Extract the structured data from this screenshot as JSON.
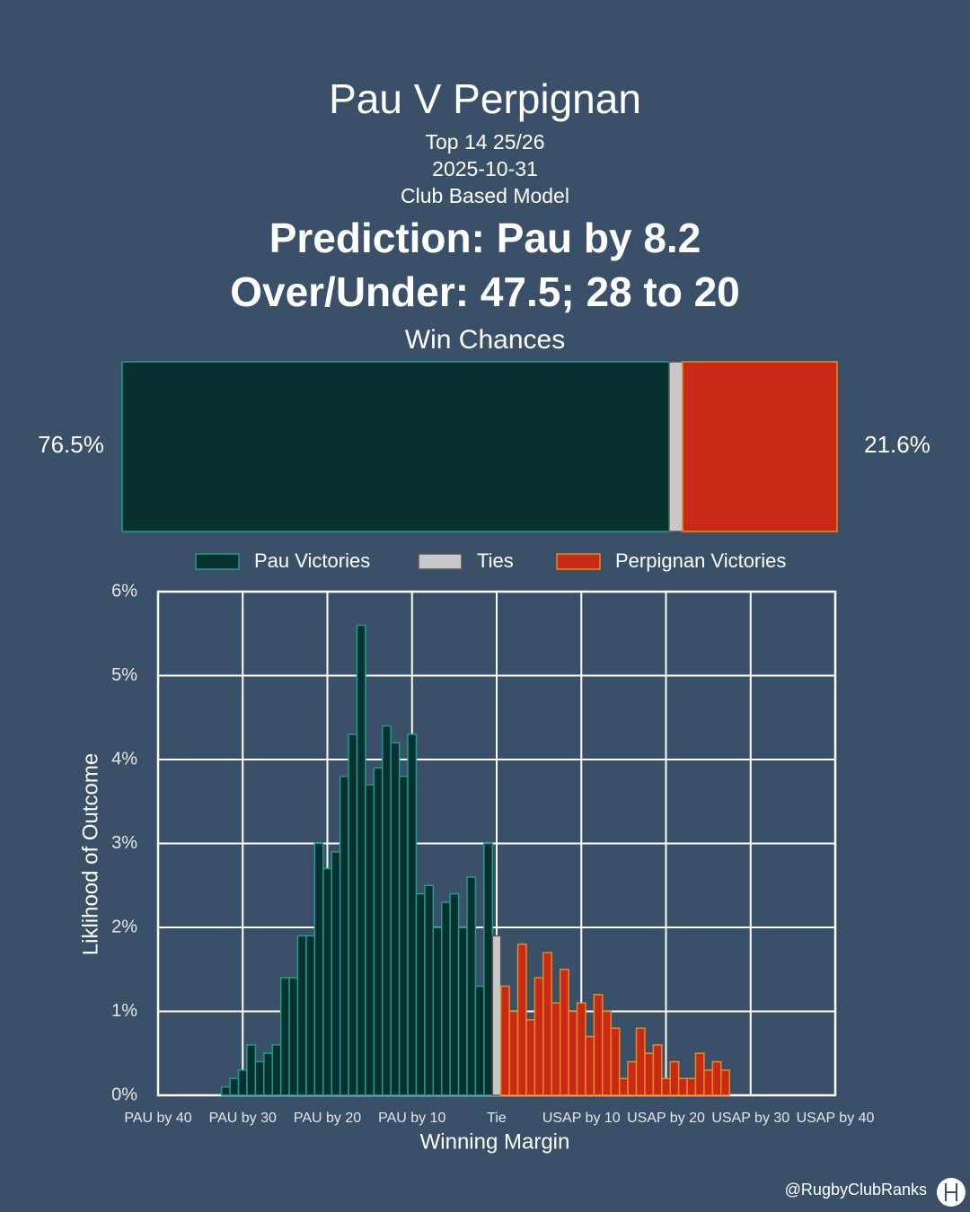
{
  "title": "Pau V Perpignan",
  "subtitle": [
    "Top 14 25/26",
    "2025-10-31",
    "Club Based Model"
  ],
  "prediction": "Prediction: Pau by 8.2",
  "over_under": "Over/Under: 47.5; 28 to 20",
  "footer": "@RugbyClubRanks",
  "chart_data": [
    {
      "type": "stacked_bar",
      "title": "Win Chances",
      "xlim": [
        0,
        100
      ],
      "series": [
        {
          "name": "Pau Victories",
          "color": "#07302f",
          "edgecolor": "#1a9e8f",
          "values": [
            76.5
          ],
          "value_labels": [
            "76.5%"
          ]
        },
        {
          "name": "Ties",
          "color": "#c8c8c8",
          "edgecolor": "#555555",
          "values": [
            1.9
          ]
        },
        {
          "name": "Perpignan Victories",
          "color": "#c92a17",
          "edgecolor": "#e88a1a",
          "values": [
            21.6
          ],
          "value_labels": [
            "21.6%"
          ]
        }
      ]
    },
    {
      "type": "bar",
      "xlabel": "Winning Margin",
      "ylabel": "Liklihood of Outcome",
      "xlim": [
        -40,
        40
      ],
      "ylim": [
        0,
        6
      ],
      "grid": true,
      "xticks": [
        {
          "value": -40,
          "label": "PAU by 40"
        },
        {
          "value": -30,
          "label": "PAU by 30"
        },
        {
          "value": -20,
          "label": "PAU by 20"
        },
        {
          "value": -10,
          "label": "PAU by 10"
        },
        {
          "value": 0,
          "label": "Tie"
        },
        {
          "value": 10,
          "label": "USAP by 10"
        },
        {
          "value": 20,
          "label": "USAP by 20"
        },
        {
          "value": 30,
          "label": "USAP by 30"
        },
        {
          "value": 40,
          "label": "USAP by 40"
        }
      ],
      "yticks": [
        {
          "value": 0,
          "label": "0%"
        },
        {
          "value": 1,
          "label": "1%"
        },
        {
          "value": 2,
          "label": "2%"
        },
        {
          "value": 3,
          "label": "3%"
        },
        {
          "value": 4,
          "label": "4%"
        },
        {
          "value": 5,
          "label": "5%"
        },
        {
          "value": 6,
          "label": "6%"
        }
      ],
      "series": [
        {
          "x": [
            -32,
            -31,
            -30,
            -29,
            -28,
            -27,
            -26,
            -25,
            -24,
            -23,
            -22,
            -21,
            -20,
            -19,
            -18,
            -17,
            -16,
            -15,
            -14,
            -13,
            -12,
            -11,
            -10,
            -9,
            -8,
            -7,
            -6,
            -5,
            -4,
            -3,
            -2,
            -1
          ],
          "values": [
            0.1,
            0.2,
            0.3,
            0.6,
            0.4,
            0.5,
            0.6,
            1.4,
            1.4,
            1.9,
            1.9,
            3.0,
            2.7,
            2.9,
            3.8,
            4.3,
            5.6,
            3.7,
            3.9,
            4.4,
            4.2,
            3.8,
            4.3,
            2.4,
            2.5,
            2.0,
            2.3,
            2.4,
            2.0,
            2.6,
            1.3,
            3.0
          ]
        },
        {
          "x": [
            0
          ],
          "values": [
            1.9
          ]
        },
        {
          "x": [
            1,
            2,
            3,
            4,
            5,
            6,
            7,
            8,
            9,
            10,
            11,
            12,
            13,
            14,
            15,
            16,
            17,
            18,
            19,
            20,
            21,
            22,
            23,
            24,
            25,
            26,
            27
          ],
          "values": [
            1.3,
            1.0,
            1.8,
            0.9,
            1.4,
            1.7,
            1.1,
            1.5,
            1.0,
            1.1,
            0.7,
            1.2,
            1.0,
            0.8,
            0.2,
            0.4,
            0.8,
            0.5,
            0.6,
            0.2,
            0.4,
            0.2,
            0.2,
            0.5,
            0.3,
            0.4,
            0.3
          ]
        }
      ]
    }
  ]
}
